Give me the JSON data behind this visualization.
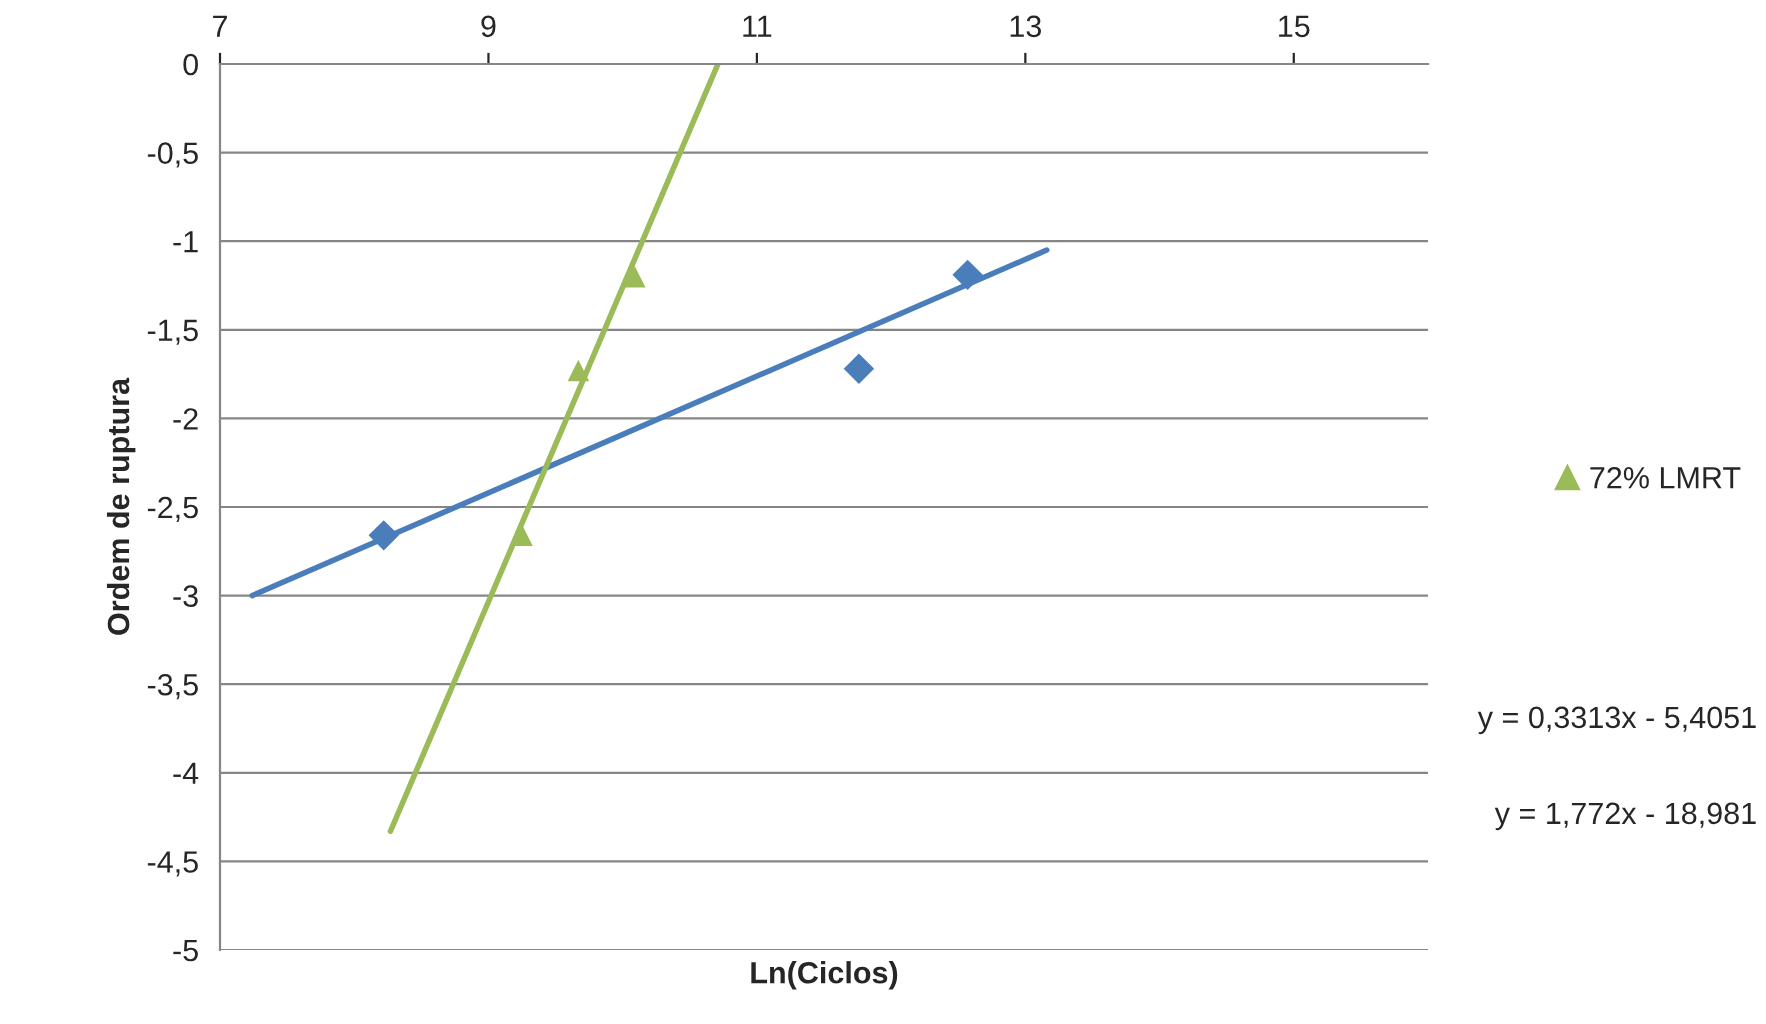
{
  "chart_data": {
    "type": "scatter",
    "xlabel": "Ln(Ciclos)",
    "ylabel": "Ordem de ruptura",
    "xlim": [
      7,
      16
    ],
    "ylim": [
      -5,
      0
    ],
    "xticks": [
      7,
      9,
      11,
      13,
      15
    ],
    "yticks": [
      0,
      {
        "value": -0.5,
        "label": "-0,5"
      },
      -1,
      {
        "value": -1.5,
        "label": "-1,5"
      },
      -2,
      {
        "value": -2.5,
        "label": "-2,5"
      },
      -3,
      {
        "value": -3.5,
        "label": "-3,5"
      },
      -4,
      {
        "value": -4.5,
        "label": "-4,5"
      },
      -5
    ],
    "grid": "y",
    "legend": "right",
    "series": [
      {
        "color": "#4a7ebb",
        "marker": "diamond",
        "x": [
          8.22,
          11.76,
          12.57
        ],
        "values": [
          -2.66,
          -1.72,
          -1.19
        ]
      },
      {
        "name": "72% LMRT",
        "color": "#9bbb59",
        "marker": "triangle",
        "x": [
          9.25,
          9.67,
          10.09
        ],
        "values": [
          -2.66,
          -1.73,
          -1.2
        ]
      },
      {
        "type": "line",
        "color": "#4a7ebb",
        "marker": "none",
        "x": [
          7.24,
          13.16
        ],
        "values": [
          -3.0,
          -1.05
        ]
      },
      {
        "type": "line",
        "color": "#9bbb59",
        "marker": "none",
        "x": [
          8.27,
          10.71
        ],
        "values": [
          -4.33,
          0
        ]
      }
    ],
    "annotations": [
      "y = 0,3313x - 5,4051",
      "y = 1,772x - 18,981"
    ]
  }
}
